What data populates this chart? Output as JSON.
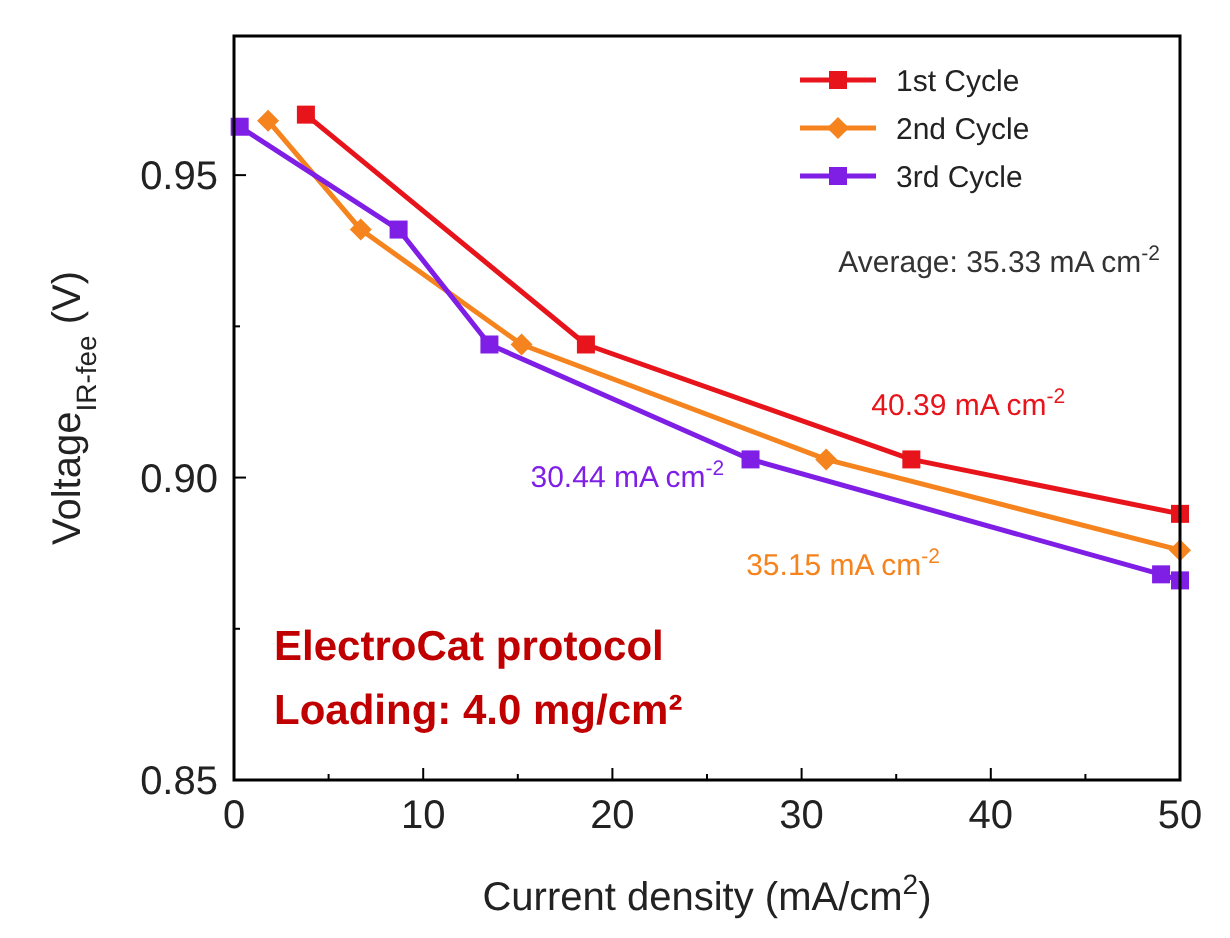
{
  "chart_data": {
    "type": "line",
    "xlabel": "Current density (mA/cm$^{2}$)",
    "ylabel": "Voltage$_{IR-fee}$ (V)",
    "xlim": [
      0,
      50
    ],
    "xticks": [
      0,
      10,
      20,
      30,
      40,
      50
    ],
    "ylim": [
      0.85,
      0.973
    ],
    "yticks": [
      {
        "value": 0.85,
        "label": "0.85"
      },
      {
        "value": 0.9,
        "label": "0.90"
      },
      {
        "value": 0.95,
        "label": "0.95"
      }
    ],
    "legend": "top right",
    "grid": false,
    "line_style": "solid",
    "series": [
      {
        "name": "1st Cycle",
        "color": "#e8141b",
        "marker": "square",
        "x": [
          3.8,
          8.7,
          18.6,
          35.8,
          50
        ],
        "values": [
          0.96,
          null,
          0.922,
          0.903,
          0.894
        ]
      },
      {
        "name": "2nd Cycle",
        "color": "#f5841f",
        "marker": "diamond",
        "x": [
          1.8,
          6.7,
          15.2,
          31.3,
          50
        ],
        "values": [
          0.959,
          0.941,
          0.922,
          0.903,
          0.888
        ]
      },
      {
        "name": "3rd Cycle",
        "color": "#7f1fe6",
        "marker": "square",
        "x": [
          0.3,
          8.7,
          13.5,
          27.3,
          49.0,
          50
        ],
        "values": [
          0.958,
          0.941,
          0.922,
          0.903,
          0.884,
          0.883
        ]
      }
    ],
    "annotations": [
      "Average: 35.33 mA cm$^{-2}$",
      {
        "text": "40.39 mA cm$^{-2}$",
        "x": 35.8,
        "y": 0.903
      },
      {
        "text": "30.44 mA cm$^{-2}$",
        "x": 27.3,
        "y": 0.903
      },
      {
        "text": "35.15 mA cm$^{-2}$",
        "x": 31.3,
        "y": 0.903
      },
      "ElectroCat protocol",
      "Loading: 4.0 mg/cm²"
    ]
  }
}
